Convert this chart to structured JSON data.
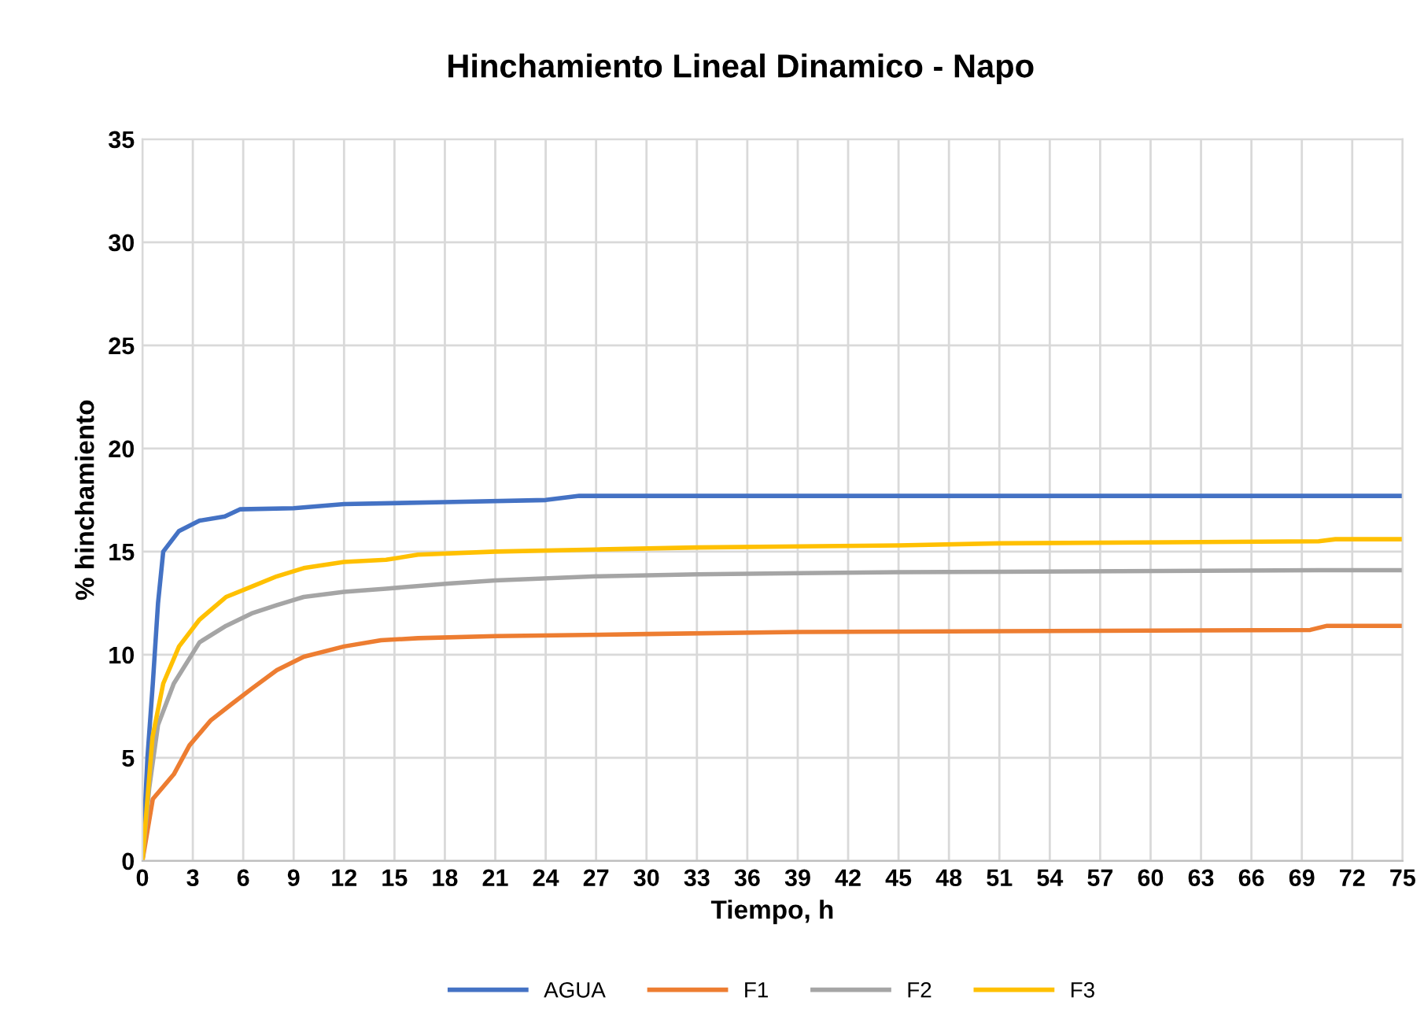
{
  "chart_data": {
    "type": "line",
    "title": "Hinchamiento Lineal Dinamico - Napo",
    "xlabel": "Tiempo, h",
    "ylabel": "% hinchamiento",
    "xlim": [
      0,
      75
    ],
    "xticks": [
      0,
      3,
      6,
      9,
      12,
      15,
      18,
      21,
      24,
      27,
      30,
      33,
      36,
      39,
      42,
      45,
      48,
      51,
      54,
      57,
      60,
      63,
      66,
      69,
      72,
      75
    ],
    "ylim": [
      0,
      35
    ],
    "yticks": [
      0,
      5,
      10,
      15,
      20,
      25,
      30,
      35
    ],
    "grid": true,
    "legend": "bottom",
    "marker": "none",
    "line_style": "solid",
    "series": [
      {
        "name": "AGUA",
        "color": "#4472c4",
        "x": [
          0,
          0.3,
          0.62,
          0.93,
          1.24,
          2.18,
          3.4,
          4.9,
          5.8,
          9,
          12,
          18,
          24,
          26,
          40,
          60,
          75
        ],
        "values": [
          0,
          5,
          8.6,
          12.5,
          15.0,
          16.0,
          16.5,
          16.7,
          17.05,
          17.1,
          17.3,
          17.4,
          17.5,
          17.7,
          17.7,
          17.7,
          17.7
        ]
      },
      {
        "name": "F1",
        "color": "#ed7d31",
        "x": [
          0,
          0.62,
          1.87,
          2.8,
          4.05,
          5.3,
          6.5,
          8,
          9.6,
          12,
          14.2,
          16.4,
          21,
          30,
          39,
          69.5,
          70.5,
          75
        ],
        "values": [
          0,
          3.0,
          4.2,
          5.6,
          6.8,
          7.6,
          8.35,
          9.25,
          9.9,
          10.4,
          10.7,
          10.8,
          10.9,
          11.0,
          11.1,
          11.2,
          11.4,
          11.4
        ]
      },
      {
        "name": "F2",
        "color": "#a5a5a5",
        "x": [
          0,
          0.4,
          0.93,
          1.87,
          3.4,
          4.98,
          6.5,
          8,
          9.6,
          12,
          14.5,
          18.2,
          21,
          27,
          33,
          45,
          70,
          75
        ],
        "values": [
          0,
          3.5,
          6.6,
          8.6,
          10.6,
          11.4,
          12.0,
          12.4,
          12.8,
          13.05,
          13.2,
          13.45,
          13.6,
          13.8,
          13.9,
          14.0,
          14.1,
          14.1
        ]
      },
      {
        "name": "F3",
        "color": "#ffc000",
        "x": [
          0,
          0.3,
          0.6,
          1.24,
          2.18,
          3.4,
          4.98,
          6.5,
          8,
          9.6,
          12,
          14.5,
          16.4,
          21,
          27,
          33,
          45,
          51,
          70,
          71,
          75
        ],
        "values": [
          0,
          3,
          6,
          8.6,
          10.4,
          11.7,
          12.8,
          13.3,
          13.8,
          14.2,
          14.5,
          14.6,
          14.85,
          15.0,
          15.1,
          15.2,
          15.3,
          15.4,
          15.5,
          15.6,
          15.6
        ]
      }
    ]
  }
}
